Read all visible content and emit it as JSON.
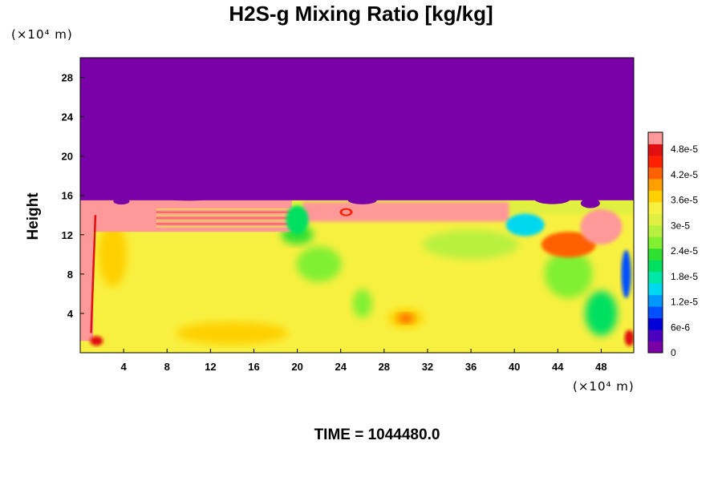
{
  "chart_data": {
    "type": "heatmap",
    "title": "H2S-g Mixing Ratio [kg/kg]",
    "ylabel": "Height",
    "x_unit": "(×10⁴ m)",
    "y_unit": "(×10⁴ m)",
    "footer": "TIME = 1044480.0",
    "xlim": [
      0,
      51
    ],
    "ylim": [
      0,
      30
    ],
    "x_ticks": [
      4,
      8,
      12,
      16,
      20,
      24,
      28,
      32,
      36,
      40,
      44,
      48
    ],
    "y_ticks": [
      4,
      8,
      12,
      16,
      20,
      24,
      28
    ],
    "x_tick_labels": [
      "4",
      "8",
      "12",
      "16",
      "20",
      "24",
      "28",
      "32",
      "36",
      "40",
      "44",
      "48"
    ],
    "y_tick_labels": [
      "4",
      "8",
      "12",
      "16",
      "20",
      "24",
      "28"
    ],
    "colorbar": {
      "min": 0,
      "max": 5.2e-05,
      "tick_values": [
        0,
        6e-06,
        1.2e-05,
        1.8e-05,
        2.4e-05,
        3e-05,
        3.6e-05,
        4.2e-05,
        4.8e-05
      ],
      "tick_labels": [
        "0",
        "6e-6",
        "1.2e-5",
        "1.8e-5",
        "2.4e-5",
        "3e-5",
        "3.6e-5",
        "4.2e-5",
        "4.8e-5"
      ],
      "colors": [
        "#7a00a8",
        "#4b00c0",
        "#0000d8",
        "#0050ff",
        "#0098ff",
        "#00d8f0",
        "#00e8a8",
        "#00e060",
        "#30e030",
        "#80f030",
        "#b8f040",
        "#e0f040",
        "#f8f040",
        "#ffd000",
        "#ffa000",
        "#ff6000",
        "#ff2000",
        "#e01010",
        "#ff9898"
      ]
    },
    "fields": {
      "upper_layer_value": 0,
      "lower_layer_typical_value": 3.3e-05,
      "interface_height": 15.5,
      "interface_band_value": 5.2e-05,
      "max_region": {
        "x": 30,
        "y": 3.5,
        "value": 3.8e-05
      }
    }
  }
}
